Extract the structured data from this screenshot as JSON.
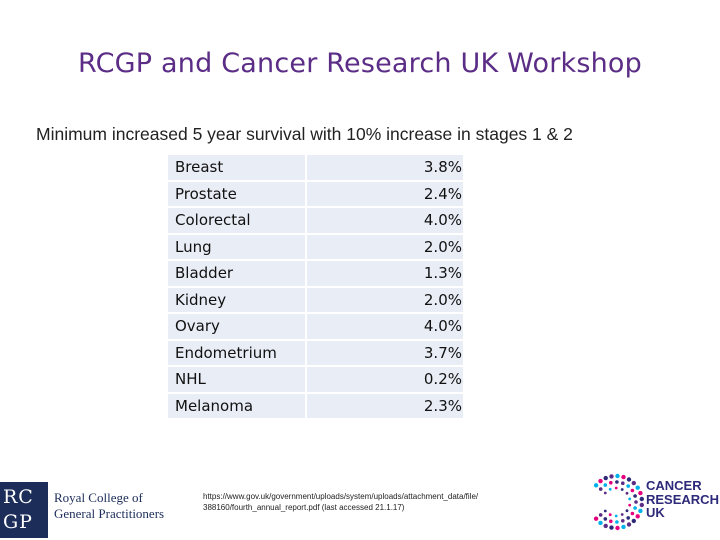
{
  "slide": {
    "title": "RCGP and Cancer Research UK Workshop",
    "subtitle": "Minimum increased 5 year survival with 10% increase in stages 1 & 2"
  },
  "table": {
    "rows": [
      {
        "cancer": "Breast",
        "value": "3.8%"
      },
      {
        "cancer": "Prostate",
        "value": "2.4%"
      },
      {
        "cancer": "Colorectal",
        "value": "4.0%"
      },
      {
        "cancer": "Lung",
        "value": "2.0%"
      },
      {
        "cancer": "Bladder",
        "value": "1.3%"
      },
      {
        "cancer": "Kidney",
        "value": "2.0%"
      },
      {
        "cancer": "Ovary",
        "value": "4.0%"
      },
      {
        "cancer": "Endometrium",
        "value": "3.7%"
      },
      {
        "cancer": "NHL",
        "value": "0.2%"
      },
      {
        "cancer": "Melanoma",
        "value": "2.3%"
      }
    ]
  },
  "source": {
    "line1": "https://www.gov.uk/government/uploads/system/uploads/attachment_data/file/",
    "line2": "388160/fourth_annual_report.pdf (last accessed 21.1.17)"
  },
  "logos": {
    "rcgp_top": "RCGP",
    "rcgp_name_line1": "Royal College of",
    "rcgp_name_line2": "General Practitioners",
    "cruk_line1": "CANCER",
    "cruk_line2": "RESEARCH",
    "cruk_line3": "UK"
  },
  "colors": {
    "title": "#5b2d86",
    "table_fill": "#e9edf6",
    "rcgp_navy": "#1c2d5a",
    "cruk_blue": "#2e2a7a",
    "cruk_pink": "#e6007e",
    "cruk_cyan": "#00b1eb",
    "cruk_purple": "#5b2d86"
  }
}
